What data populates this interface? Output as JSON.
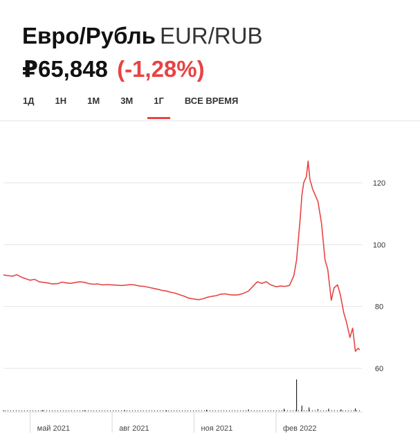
{
  "header": {
    "title": "Евро/Рубль",
    "pair": "EUR/RUB",
    "price": "₽65,848",
    "change": "(-1,28%)"
  },
  "tabs": [
    {
      "label": "1Д",
      "active": false
    },
    {
      "label": "1Н",
      "active": false
    },
    {
      "label": "1М",
      "active": false
    },
    {
      "label": "3М",
      "active": false
    },
    {
      "label": "1Г",
      "active": true
    },
    {
      "label": "ВСЕ ВРЕМЯ",
      "active": false
    }
  ],
  "colors": {
    "accent": "#e84343",
    "line": "#e84343",
    "volume": "#222222",
    "grid": "#e4e4e4"
  },
  "chart_data": {
    "type": "line",
    "title": "",
    "xlabel": "",
    "ylabel": "",
    "ylim": [
      56,
      128
    ],
    "y_ticks": [
      60,
      80,
      100,
      120
    ],
    "x_tick_labels": [
      "май 2021",
      "авг 2021",
      "ноя 2021",
      "фев 2022"
    ],
    "x_tick_dates": [
      "2021-05-01",
      "2021-08-01",
      "2021-11-01",
      "2022-02-01"
    ],
    "x_range": [
      "2021-04-01",
      "2022-05-06"
    ],
    "grid": true,
    "series": [
      {
        "type": "line",
        "x": [
          "2021-04-01",
          "2021-04-06",
          "2021-04-11",
          "2021-04-16",
          "2021-04-21",
          "2021-04-26",
          "2021-05-01",
          "2021-05-06",
          "2021-05-11",
          "2021-05-16",
          "2021-05-21",
          "2021-05-26",
          "2021-06-01",
          "2021-06-06",
          "2021-06-11",
          "2021-06-16",
          "2021-06-21",
          "2021-06-26",
          "2021-07-01",
          "2021-07-06",
          "2021-07-11",
          "2021-07-16",
          "2021-07-21",
          "2021-07-26",
          "2021-08-01",
          "2021-08-06",
          "2021-08-11",
          "2021-08-16",
          "2021-08-21",
          "2021-08-26",
          "2021-09-01",
          "2021-09-06",
          "2021-09-11",
          "2021-09-16",
          "2021-09-21",
          "2021-09-26",
          "2021-10-01",
          "2021-10-06",
          "2021-10-11",
          "2021-10-16",
          "2021-10-21",
          "2021-10-26",
          "2021-11-01",
          "2021-11-06",
          "2021-11-11",
          "2021-11-16",
          "2021-11-21",
          "2021-11-26",
          "2021-12-01",
          "2021-12-06",
          "2021-12-11",
          "2021-12-16",
          "2021-12-21",
          "2021-12-26",
          "2022-01-01",
          "2022-01-06",
          "2022-01-11",
          "2022-01-16",
          "2022-01-21",
          "2022-01-26",
          "2022-02-01",
          "2022-02-06",
          "2022-02-11",
          "2022-02-16",
          "2022-02-21",
          "2022-02-24",
          "2022-02-28",
          "2022-03-02",
          "2022-03-04",
          "2022-03-07",
          "2022-03-09",
          "2022-03-11",
          "2022-03-14",
          "2022-03-17",
          "2022-03-20",
          "2022-03-24",
          "2022-03-28",
          "2022-03-31",
          "2022-04-04",
          "2022-04-07",
          "2022-04-11",
          "2022-04-14",
          "2022-04-18",
          "2022-04-21",
          "2022-04-25",
          "2022-04-28",
          "2022-05-01",
          "2022-05-04",
          "2022-05-06"
        ],
        "y": [
          90.2,
          90.0,
          89.8,
          90.3,
          89.5,
          89.0,
          88.5,
          88.8,
          88.0,
          87.8,
          87.6,
          87.3,
          87.4,
          87.9,
          87.6,
          87.5,
          87.8,
          88.0,
          87.8,
          87.4,
          87.2,
          87.3,
          87.0,
          87.1,
          87.0,
          86.9,
          86.8,
          86.9,
          87.1,
          87.0,
          86.6,
          86.5,
          86.2,
          85.9,
          85.6,
          85.2,
          85.0,
          84.6,
          84.3,
          83.8,
          83.3,
          82.7,
          82.4,
          82.2,
          82.5,
          83.0,
          83.3,
          83.5,
          84.0,
          84.1,
          83.8,
          83.7,
          83.8,
          84.2,
          85.0,
          86.5,
          88.0,
          87.5,
          88.0,
          87.0,
          86.4,
          86.6,
          86.5,
          86.8,
          90.0,
          95.0,
          108.0,
          116.0,
          120.0,
          122.0,
          127.0,
          121.0,
          118.0,
          116.0,
          114.0,
          107.0,
          95.0,
          92.0,
          82.0,
          86.0,
          87.0,
          84.0,
          78.0,
          75.0,
          70.0,
          73.0,
          65.5,
          66.5,
          66.0
        ]
      }
    ],
    "volume": {
      "note": "black volume bars along the bottom strip with one large spike near 2022-02-24",
      "x": [
        "2021-04-01",
        "2021-05-15",
        "2021-07-01",
        "2021-08-15",
        "2021-10-01",
        "2021-11-15",
        "2022-01-01",
        "2022-02-10",
        "2022-02-24",
        "2022-03-02",
        "2022-03-10",
        "2022-03-20",
        "2022-04-01",
        "2022-04-15",
        "2022-05-01"
      ],
      "relative_height": [
        0.03,
        0.04,
        0.03,
        0.04,
        0.03,
        0.05,
        0.06,
        0.08,
        1.0,
        0.18,
        0.12,
        0.07,
        0.08,
        0.06,
        0.09
      ]
    }
  }
}
